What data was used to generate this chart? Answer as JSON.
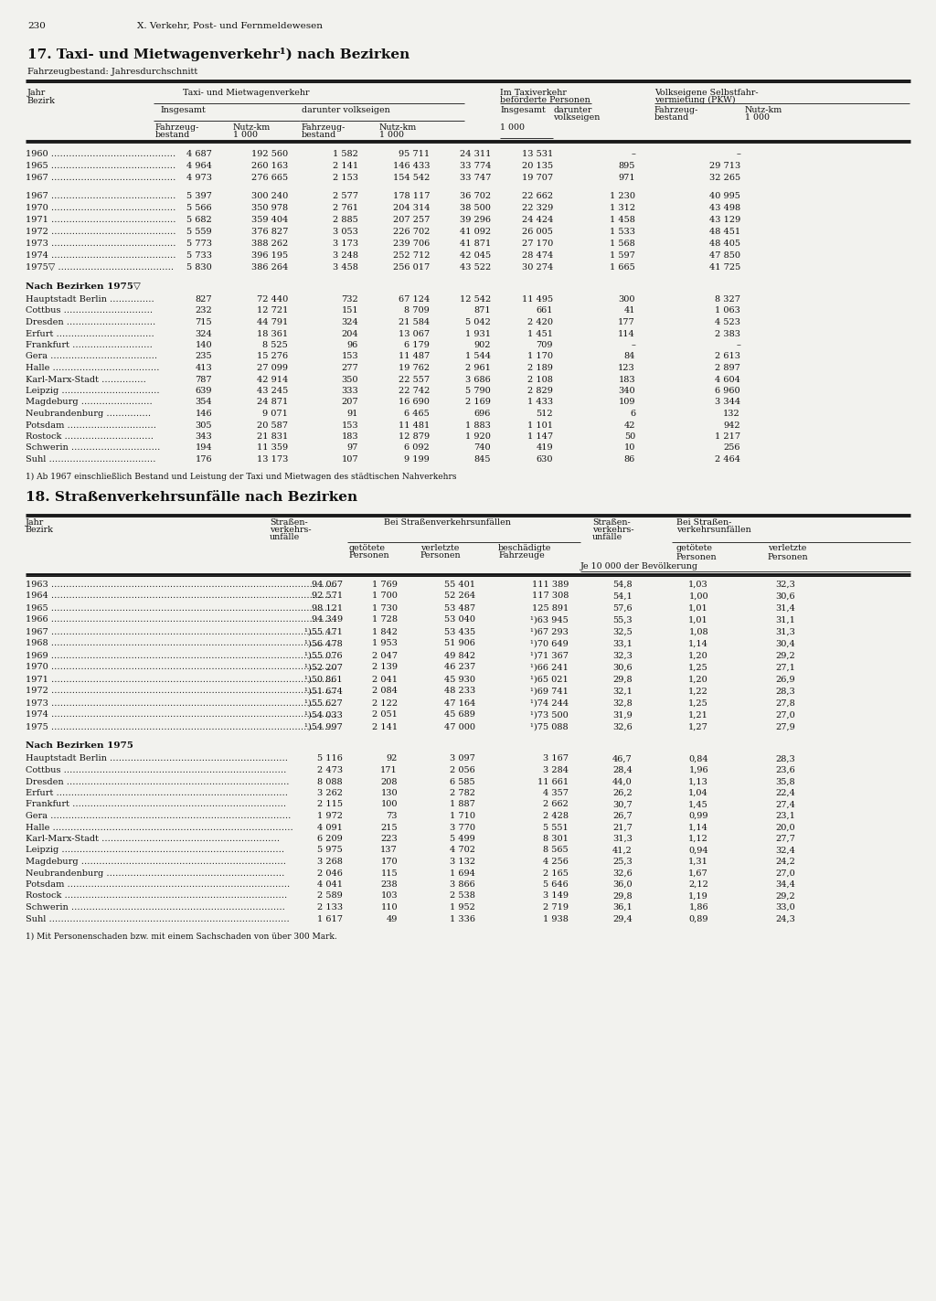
{
  "page_number": "230",
  "chapter": "X. Verkehr, Post- und Fernmeldewesen",
  "table1_title": "17. Taxi- und Mietwagenverkehr¹) nach Bezirken",
  "table1_subtitle": "Fahrzeugbestand: Jahresdurchschnitt",
  "table1_years_data": [
    [
      "1960 ……………………………………",
      "4 687",
      "192 560",
      "1 582",
      "95 711",
      "24 311",
      "13 531",
      "–",
      "–"
    ],
    [
      "1965 ……………………………………",
      "4 964",
      "260 163",
      "2 141",
      "146 433",
      "33 774",
      "20 135",
      "895",
      "29 713"
    ],
    [
      "1967 ……………………………………",
      "4 973",
      "276 665",
      "2 153",
      "154 542",
      "33 747",
      "19 707",
      "971",
      "32 265"
    ]
  ],
  "table1_years_data2": [
    [
      "1967 ……………………………………",
      "5 397",
      "300 240",
      "2 577",
      "178 117",
      "36 702",
      "22 662",
      "1 230",
      "40 995"
    ],
    [
      "1970 ……………………………………",
      "5 566",
      "350 978",
      "2 761",
      "204 314",
      "38 500",
      "22 329",
      "1 312",
      "43 498"
    ],
    [
      "1971 ……………………………………",
      "5 682",
      "359 404",
      "2 885",
      "207 257",
      "39 296",
      "24 424",
      "1 458",
      "43 129"
    ],
    [
      "1972 ……………………………………",
      "5 559",
      "376 827",
      "3 053",
      "226 702",
      "41 092",
      "26 005",
      "1 533",
      "48 451"
    ],
    [
      "1973 ……………………………………",
      "5 773",
      "388 262",
      "3 173",
      "239 706",
      "41 871",
      "27 170",
      "1 568",
      "48 405"
    ],
    [
      "1974 ……………………………………",
      "5 733",
      "396 195",
      "3 248",
      "252 712",
      "42 045",
      "28 474",
      "1 597",
      "47 850"
    ],
    [
      "1975▽ …………………………………",
      "5 830",
      "386 264",
      "3 458",
      "256 017",
      "43 522",
      "30 274",
      "1 665",
      "41 725"
    ]
  ],
  "table1_bezirke_header": "Nach Bezirken 1975▽",
  "table1_bezirke_data": [
    [
      "Hauptstadt Berlin ……………",
      "827",
      "72 440",
      "732",
      "67 124",
      "12 542",
      "11 495",
      "300",
      "8 327"
    ],
    [
      "Cottbus …………………………",
      "232",
      "12 721",
      "151",
      "8 709",
      "871",
      "661",
      "41",
      "1 063"
    ],
    [
      "Dresden …………………………",
      "715",
      "44 791",
      "324",
      "21 584",
      "5 042",
      "2 420",
      "177",
      "4 523"
    ],
    [
      "Erfurt ……………………………",
      "324",
      "18 361",
      "204",
      "13 067",
      "1 931",
      "1 451",
      "114",
      "2 383"
    ],
    [
      "Frankfurt ………………………",
      "140",
      "8 525",
      "96",
      "6 179",
      "902",
      "709",
      "–",
      "–"
    ],
    [
      "Gera ………………………………",
      "235",
      "15 276",
      "153",
      "11 487",
      "1 544",
      "1 170",
      "84",
      "2 613"
    ],
    [
      "Halle ………………………………",
      "413",
      "27 099",
      "277",
      "19 762",
      "2 961",
      "2 189",
      "123",
      "2 897"
    ],
    [
      "Karl-Marx-Stadt ……………",
      "787",
      "42 914",
      "350",
      "22 557",
      "3 686",
      "2 108",
      "183",
      "4 604"
    ],
    [
      "Leipzig ……………………………",
      "639",
      "43 245",
      "333",
      "22 742",
      "5 790",
      "2 829",
      "340",
      "6 960"
    ],
    [
      "Magdeburg ……………………",
      "354",
      "24 871",
      "207",
      "16 690",
      "2 169",
      "1 433",
      "109",
      "3 344"
    ],
    [
      "Neubrandenburg ……………",
      "146",
      "9 071",
      "91",
      "6 465",
      "696",
      "512",
      "6",
      "132"
    ],
    [
      "Potsdam …………………………",
      "305",
      "20 587",
      "153",
      "11 481",
      "1 883",
      "1 101",
      "42",
      "942"
    ],
    [
      "Rostock …………………………",
      "343",
      "21 831",
      "183",
      "12 879",
      "1 920",
      "1 147",
      "50",
      "1 217"
    ],
    [
      "Schwerin …………………………",
      "194",
      "11 359",
      "97",
      "6 092",
      "740",
      "419",
      "10",
      "256"
    ],
    [
      "Suhl ………………………………",
      "176",
      "13 173",
      "107",
      "9 199",
      "845",
      "630",
      "86",
      "2 464"
    ]
  ],
  "table1_footnote": "1) Ab 1967 einschließlich Bestand und Leistung der Taxi und Mietwagen des städtischen Nahverkehrs",
  "table2_title": "18. Straßenverkehrsunfälle nach Bezirken",
  "table2_years_data": [
    [
      "1963 ……………………………………………………………………………………",
      "94 067",
      "1 769",
      "55 401",
      "111 389",
      "54,8",
      "1,03",
      "32,3"
    ],
    [
      "1964 ……………………………………………………………………………………",
      "92 571",
      "1 700",
      "52 264",
      "117 308",
      "54,1",
      "1,00",
      "30,6"
    ],
    [
      "1965 ……………………………………………………………………………………",
      "98 121",
      "1 730",
      "53 487",
      "125 891",
      "57,6",
      "1,01",
      "31,4"
    ],
    [
      "1966 ……………………………………………………………………………………",
      "94 349",
      "1 728",
      "53 040",
      "¹)63 945",
      "55,3",
      "1,01",
      "31,1"
    ],
    [
      "1967 ……………………………………………………………………………………",
      "¹)55 471",
      "1 842",
      "53 435",
      "¹)67 293",
      "32,5",
      "1,08",
      "31,3"
    ],
    [
      "1968 ……………………………………………………………………………………",
      "¹)56 478",
      "1 953",
      "51 906",
      "¹)70 649",
      "33,1",
      "1,14",
      "30,4"
    ],
    [
      "1969 ……………………………………………………………………………………",
      "¹)55 076",
      "2 047",
      "49 842",
      "¹)71 367",
      "32,3",
      "1,20",
      "29,2"
    ],
    [
      "1970 ……………………………………………………………………………………",
      "¹)52 207",
      "2 139",
      "46 237",
      "¹)66 241",
      "30,6",
      "1,25",
      "27,1"
    ],
    [
      "1971 ……………………………………………………………………………………",
      "¹)50 861",
      "2 041",
      "45 930",
      "¹)65 021",
      "29,8",
      "1,20",
      "26,9"
    ],
    [
      "1972 ……………………………………………………………………………………",
      "¹)51 674",
      "2 084",
      "48 233",
      "¹)69 741",
      "32,1",
      "1,22",
      "28,3"
    ],
    [
      "1973 ……………………………………………………………………………………",
      "¹)55 627",
      "2 122",
      "47 164",
      "¹)74 244",
      "32,8",
      "1,25",
      "27,8"
    ],
    [
      "1974 ……………………………………………………………………………………",
      "¹)54 033",
      "2 051",
      "45 689",
      "¹)73 500",
      "31,9",
      "1,21",
      "27,0"
    ],
    [
      "1975 ……………………………………………………………………………………",
      "¹)54 997",
      "2 141",
      "47 000",
      "¹)75 088",
      "32,6",
      "1,27",
      "27,9"
    ]
  ],
  "table2_bezirke_header": "Nach Bezirken 1975",
  "table2_bezirke_data": [
    [
      "Hauptstadt Berlin ……………………………………………………",
      "5 116",
      "92",
      "3 097",
      "3 167",
      "46,7",
      "0,84",
      "28,3"
    ],
    [
      "Cottbus …………………………………………………………………",
      "2 473",
      "171",
      "2 056",
      "3 284",
      "28,4",
      "1,96",
      "23,6"
    ],
    [
      "Dresden …………………………………………………………………",
      "8 088",
      "208",
      "6 585",
      "11 661",
      "44,0",
      "1,13",
      "35,8"
    ],
    [
      "Erfurt ……………………………………………………………………",
      "3 262",
      "130",
      "2 782",
      "4 357",
      "26,2",
      "1,04",
      "22,4"
    ],
    [
      "Frankfurt ………………………………………………………………",
      "2 115",
      "100",
      "1 887",
      "2 662",
      "30,7",
      "1,45",
      "27,4"
    ],
    [
      "Gera ………………………………………………………………………",
      "1 972",
      "73",
      "1 710",
      "2 428",
      "26,7",
      "0,99",
      "23,1"
    ],
    [
      "Halle ………………………………………………………………………",
      "4 091",
      "215",
      "3 770",
      "5 551",
      "21,7",
      "1,14",
      "20,0"
    ],
    [
      "Karl-Marx-Stadt ……………………………………………………",
      "6 209",
      "223",
      "5 499",
      "8 301",
      "31,3",
      "1,12",
      "27,7"
    ],
    [
      "Leipzig …………………………………………………………………",
      "5 975",
      "137",
      "4 702",
      "8 565",
      "41,2",
      "0,94",
      "32,4"
    ],
    [
      "Magdeburg ……………………………………………………………",
      "3 268",
      "170",
      "3 132",
      "4 256",
      "25,3",
      "1,31",
      "24,2"
    ],
    [
      "Neubrandenburg ……………………………………………………",
      "2 046",
      "115",
      "1 694",
      "2 165",
      "32,6",
      "1,67",
      "27,0"
    ],
    [
      "Potsdam …………………………………………………………………",
      "4 041",
      "238",
      "3 866",
      "5 646",
      "36,0",
      "2,12",
      "34,4"
    ],
    [
      "Rostock …………………………………………………………………",
      "2 589",
      "103",
      "2 538",
      "3 149",
      "29,8",
      "1,19",
      "29,2"
    ],
    [
      "Schwerin ………………………………………………………………",
      "2 133",
      "110",
      "1 952",
      "2 719",
      "36,1",
      "1,86",
      "33,0"
    ],
    [
      "Suhl ………………………………………………………………………",
      "1 617",
      "49",
      "1 336",
      "1 938",
      "29,4",
      "0,89",
      "24,3"
    ]
  ],
  "table2_footnote": "1) Mit Personenschaden bzw. mit einem Sachschaden von über 300 Mark.",
  "bg_color": "#f2f2ee",
  "text_color": "#111111"
}
